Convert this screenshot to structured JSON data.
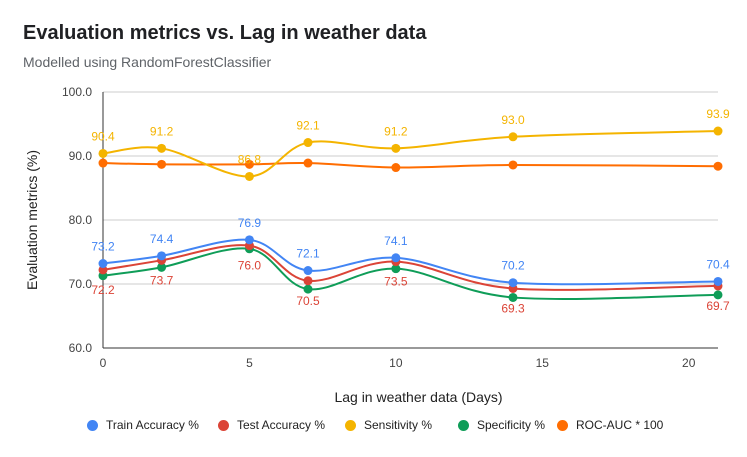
{
  "chart_data": {
    "type": "line",
    "title": "Evaluation metrics vs. Lag in weather data",
    "subtitle": "Modelled using RandomForestClassifier",
    "xlabel": "Lag in weather data (Days)",
    "ylabel": "Evaluation metrics (%)",
    "x": [
      0,
      2,
      5,
      7,
      10,
      14,
      21
    ],
    "xlim": [
      0,
      21
    ],
    "ylim": [
      60,
      100
    ],
    "x_ticks": [
      "0",
      "5",
      "10",
      "15",
      "20"
    ],
    "y_ticks": [
      "60.0",
      "70.0",
      "80.0",
      "90.0",
      "100.0"
    ],
    "grid": true,
    "legend_position": "bottom",
    "series": [
      {
        "name": "Train Accuracy %",
        "color": "#4285f4",
        "values": [
          73.2,
          74.4,
          76.9,
          72.1,
          74.1,
          70.2,
          70.4
        ],
        "labels": [
          "73.2",
          "74.4",
          "76.9",
          "72.1",
          "74.1",
          "70.2",
          "70.4"
        ],
        "label_position": "above"
      },
      {
        "name": "Test Accuracy %",
        "color": "#db4437",
        "values": [
          72.2,
          73.7,
          76.0,
          70.5,
          73.5,
          69.3,
          69.7
        ],
        "labels": [
          "72.2",
          "73.7",
          "76.0",
          "70.5",
          "73.5",
          "69.3",
          "69.7"
        ],
        "label_position": "below"
      },
      {
        "name": "Sensitivity %",
        "color": "#f4b400",
        "values": [
          90.4,
          91.2,
          86.8,
          92.1,
          91.2,
          93.0,
          93.9
        ],
        "labels": [
          "90.4",
          "91.2",
          "86.8",
          "92.1",
          "91.2",
          "93.0",
          "93.9"
        ],
        "label_position": "above"
      },
      {
        "name": "Specificity %",
        "color": "#0f9d58",
        "values": [
          71.3,
          72.6,
          75.5,
          69.2,
          72.4,
          67.9,
          68.3
        ]
      },
      {
        "name": "ROC-AUC * 100",
        "color": "#ff6d01",
        "values": [
          88.9,
          88.7,
          88.7,
          88.9,
          88.2,
          88.6,
          88.4
        ]
      }
    ]
  }
}
